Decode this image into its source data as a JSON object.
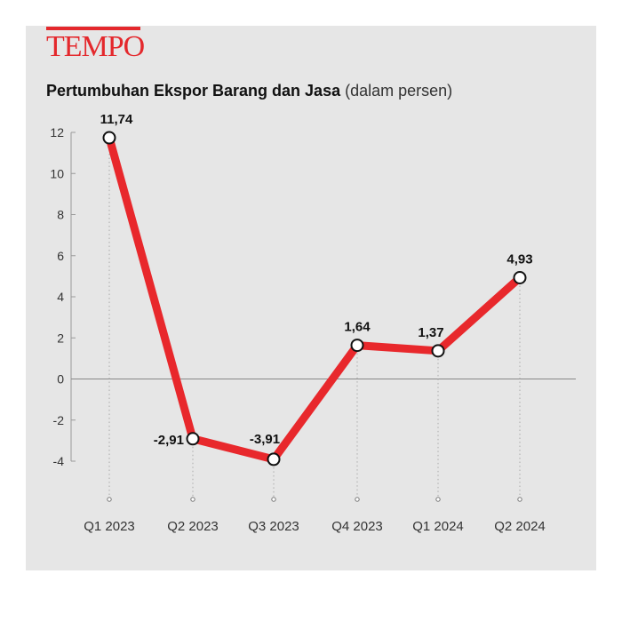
{
  "brand": {
    "logo_text": "TEMPO",
    "accent": "#e4282c"
  },
  "chart_data": {
    "type": "line",
    "title": "Pertumbuhan Ekspor Barang dan Jasa",
    "unit_note": "(dalam persen)",
    "categories": [
      "Q1 2023",
      "Q2 2023",
      "Q3 2023",
      "Q4 2023",
      "Q1 2024",
      "Q2 2024"
    ],
    "values": [
      11.74,
      -2.91,
      -3.91,
      1.64,
      1.37,
      4.93
    ],
    "data_labels": [
      "11,74",
      "-2,91",
      "-3,91",
      "1,64",
      "1,37",
      "4,93"
    ],
    "yticks": [
      12,
      10,
      8,
      6,
      4,
      2,
      0,
      -2,
      -4
    ],
    "ylim": [
      -4,
      12
    ],
    "line_color": "#e8282c",
    "grid": false
  }
}
